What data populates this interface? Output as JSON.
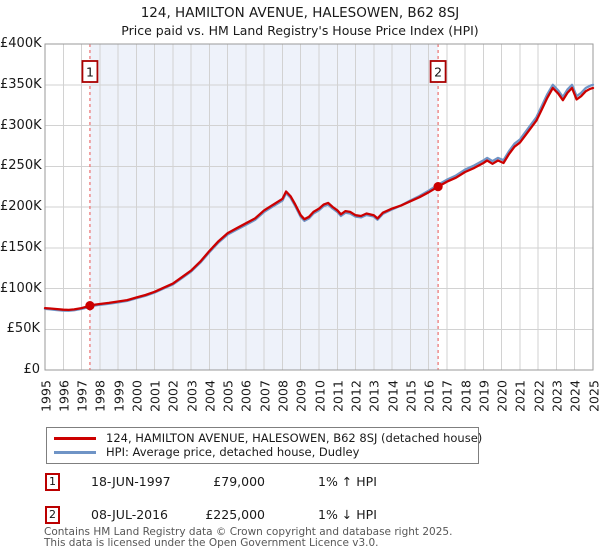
{
  "chart_data": {
    "type": "line",
    "title": "124, HAMILTON AVENUE, HALESOWEN, B62 8SJ",
    "subtitle": "Price paid vs. HM Land Registry's House Price Index (HPI)",
    "xlim": [
      1995,
      2025
    ],
    "ylim_gbp": [
      0,
      400000
    ],
    "grid": true,
    "legend_position": "bottom",
    "x_ticks": [
      1995,
      1996,
      1997,
      1998,
      1999,
      2000,
      2001,
      2002,
      2003,
      2004,
      2005,
      2006,
      2007,
      2008,
      2009,
      2010,
      2011,
      2012,
      2013,
      2014,
      2015,
      2016,
      2017,
      2018,
      2019,
      2020,
      2021,
      2022,
      2023,
      2024,
      2025
    ],
    "y_ticks": [
      {
        "gbp_k": 0,
        "label": "£0"
      },
      {
        "gbp_k": 50,
        "label": "£50K"
      },
      {
        "gbp_k": 100,
        "label": "£100K"
      },
      {
        "gbp_k": 150,
        "label": "£150K"
      },
      {
        "gbp_k": 200,
        "label": "£200K"
      },
      {
        "gbp_k": 250,
        "label": "£250K"
      },
      {
        "gbp_k": 300,
        "label": "£300K"
      },
      {
        "gbp_k": 350,
        "label": "£350K"
      },
      {
        "gbp_k": 400,
        "label": "£400K"
      }
    ],
    "series": [
      {
        "name": "124, HAMILTON AVENUE, HALESOWEN, B62 8SJ (detached house)",
        "color": "#cc0000",
        "points_year_gbpk": [
          [
            1995,
            76
          ],
          [
            1995.3,
            75.4
          ],
          [
            1995.6,
            74.8
          ],
          [
            1996,
            74
          ],
          [
            1996.3,
            73.7
          ],
          [
            1996.6,
            74.4
          ],
          [
            1997,
            76
          ],
          [
            1997.25,
            77.5
          ],
          [
            1997.46,
            79
          ],
          [
            1997.75,
            80.2
          ],
          [
            1998,
            81
          ],
          [
            1998.5,
            82.3
          ],
          [
            1999,
            84
          ],
          [
            1999.5,
            85.8
          ],
          [
            2000,
            89
          ],
          [
            2000.5,
            92
          ],
          [
            2001,
            96
          ],
          [
            2001.5,
            101
          ],
          [
            2002,
            106
          ],
          [
            2002.5,
            114
          ],
          [
            2003,
            122
          ],
          [
            2003.5,
            133
          ],
          [
            2004,
            146
          ],
          [
            2004.5,
            158
          ],
          [
            2005,
            168
          ],
          [
            2005.5,
            174
          ],
          [
            2006,
            180
          ],
          [
            2006.5,
            186
          ],
          [
            2007,
            196
          ],
          [
            2007.5,
            203
          ],
          [
            2008,
            210
          ],
          [
            2008.2,
            219
          ],
          [
            2008.45,
            213
          ],
          [
            2008.7,
            203
          ],
          [
            2009,
            190
          ],
          [
            2009.2,
            185
          ],
          [
            2009.45,
            188
          ],
          [
            2009.7,
            194
          ],
          [
            2010,
            198
          ],
          [
            2010.25,
            203
          ],
          [
            2010.5,
            205
          ],
          [
            2010.75,
            200
          ],
          [
            2011,
            196
          ],
          [
            2011.2,
            191
          ],
          [
            2011.45,
            195
          ],
          [
            2011.7,
            194
          ],
          [
            2012,
            190
          ],
          [
            2012.3,
            189
          ],
          [
            2012.6,
            192
          ],
          [
            2013,
            190
          ],
          [
            2013.2,
            186
          ],
          [
            2013.5,
            193
          ],
          [
            2014,
            198
          ],
          [
            2014.5,
            202
          ],
          [
            2015,
            207
          ],
          [
            2015.5,
            212
          ],
          [
            2016,
            218
          ],
          [
            2016.52,
            225
          ],
          [
            2017,
            231
          ],
          [
            2017.5,
            236
          ],
          [
            2018,
            243
          ],
          [
            2018.5,
            248
          ],
          [
            2019,
            254
          ],
          [
            2019.2,
            257
          ],
          [
            2019.5,
            253
          ],
          [
            2019.8,
            257
          ],
          [
            2020.1,
            254
          ],
          [
            2020.4,
            265
          ],
          [
            2020.7,
            274
          ],
          [
            2021,
            279
          ],
          [
            2021.3,
            288
          ],
          [
            2021.6,
            297
          ],
          [
            2021.9,
            306
          ],
          [
            2022.2,
            320
          ],
          [
            2022.5,
            334
          ],
          [
            2022.8,
            346
          ],
          [
            2023.1,
            339
          ],
          [
            2023.35,
            331
          ],
          [
            2023.6,
            340
          ],
          [
            2023.85,
            346
          ],
          [
            2024.1,
            332
          ],
          [
            2024.35,
            336
          ],
          [
            2024.6,
            342
          ],
          [
            2024.85,
            345
          ],
          [
            2025,
            346
          ]
        ]
      },
      {
        "name": "HPI: Average price, detached house, Dudley",
        "color": "#6f94c6",
        "points_year_gbpk": [
          [
            1995,
            75
          ],
          [
            1995.3,
            74.3
          ],
          [
            1995.6,
            73.6
          ],
          [
            1996,
            72.9
          ],
          [
            1996.3,
            72.7
          ],
          [
            1996.6,
            73.4
          ],
          [
            1997,
            75
          ],
          [
            1997.25,
            76.5
          ],
          [
            1997.46,
            78
          ],
          [
            1997.75,
            79.2
          ],
          [
            1998,
            80
          ],
          [
            1998.5,
            81.3
          ],
          [
            1999,
            83
          ],
          [
            1999.5,
            84.8
          ],
          [
            2000,
            88
          ],
          [
            2000.5,
            91
          ],
          [
            2001,
            95
          ],
          [
            2001.5,
            100
          ],
          [
            2002,
            105
          ],
          [
            2002.5,
            112.8
          ],
          [
            2003,
            120.7
          ],
          [
            2003.5,
            131.6
          ],
          [
            2004,
            144.5
          ],
          [
            2004.5,
            156.4
          ],
          [
            2005,
            166.3
          ],
          [
            2005.5,
            172.3
          ],
          [
            2006,
            178.2
          ],
          [
            2006.5,
            184.2
          ],
          [
            2007,
            194
          ],
          [
            2007.5,
            201
          ],
          [
            2008,
            208
          ],
          [
            2008.2,
            217
          ],
          [
            2008.45,
            211
          ],
          [
            2008.7,
            201
          ],
          [
            2009,
            188
          ],
          [
            2009.2,
            183
          ],
          [
            2009.45,
            186
          ],
          [
            2009.7,
            192
          ],
          [
            2010,
            196
          ],
          [
            2010.25,
            201
          ],
          [
            2010.5,
            203
          ],
          [
            2010.75,
            198
          ],
          [
            2011,
            194
          ],
          [
            2011.2,
            189
          ],
          [
            2011.45,
            193
          ],
          [
            2011.7,
            192
          ],
          [
            2012,
            188.2
          ],
          [
            2012.3,
            187.2
          ],
          [
            2012.6,
            190.2
          ],
          [
            2013,
            188.3
          ],
          [
            2013.2,
            184.4
          ],
          [
            2013.5,
            191.5
          ],
          [
            2014,
            197
          ],
          [
            2014.5,
            202
          ],
          [
            2015,
            208
          ],
          [
            2015.5,
            213.5
          ],
          [
            2016,
            220
          ],
          [
            2016.52,
            227.3
          ],
          [
            2017,
            233.5
          ],
          [
            2017.5,
            238.7
          ],
          [
            2018,
            245.9
          ],
          [
            2018.5,
            251
          ],
          [
            2019,
            257.2
          ],
          [
            2019.2,
            260.3
          ],
          [
            2019.5,
            256.3
          ],
          [
            2019.8,
            260.3
          ],
          [
            2020.1,
            257.4
          ],
          [
            2020.4,
            268.5
          ],
          [
            2020.7,
            277.7
          ],
          [
            2021,
            282.8
          ],
          [
            2021.3,
            291.9
          ],
          [
            2021.6,
            301
          ],
          [
            2021.9,
            310.1
          ],
          [
            2022.2,
            324.2
          ],
          [
            2022.5,
            338.3
          ],
          [
            2022.8,
            350
          ],
          [
            2023.1,
            343
          ],
          [
            2023.35,
            335
          ],
          [
            2023.6,
            344
          ],
          [
            2023.85,
            350
          ],
          [
            2024.1,
            336
          ],
          [
            2024.35,
            340
          ],
          [
            2024.6,
            346
          ],
          [
            2024.85,
            349
          ],
          [
            2025,
            350
          ]
        ]
      }
    ],
    "markers": [
      {
        "num": "1",
        "year": 1997.46,
        "gbp_k": 79
      },
      {
        "num": "2",
        "year": 2016.52,
        "gbp_k": 225
      }
    ],
    "shaded_span_years": [
      1997.46,
      2016.52
    ],
    "colors": {
      "grid": "#d2d2d2",
      "frame": "#9a9a9a",
      "shading": "#eef2fa",
      "dashed_marker": "#ec7a7a",
      "marker_box_border": "#aa0000",
      "sale_dot": "#cc0000"
    }
  },
  "legend": {
    "items": [
      {
        "label": "124, HAMILTON AVENUE, HALESOWEN, B62 8SJ (detached house)",
        "color": "#cc0000"
      },
      {
        "label": "HPI: Average price, detached house, Dudley",
        "color": "#6f94c6"
      }
    ]
  },
  "transactions": [
    {
      "num": "1",
      "date": "18-JUN-1997",
      "price": "£79,000",
      "hpi_delta": "1% ↑ HPI"
    },
    {
      "num": "2",
      "date": "08-JUL-2016",
      "price": "£225,000",
      "hpi_delta": "1% ↓ HPI"
    }
  ],
  "footer": {
    "line1": "Contains HM Land Registry data © Crown copyright and database right 2025.",
    "line2": "This data is licensed under the Open Government Licence v3.0."
  }
}
